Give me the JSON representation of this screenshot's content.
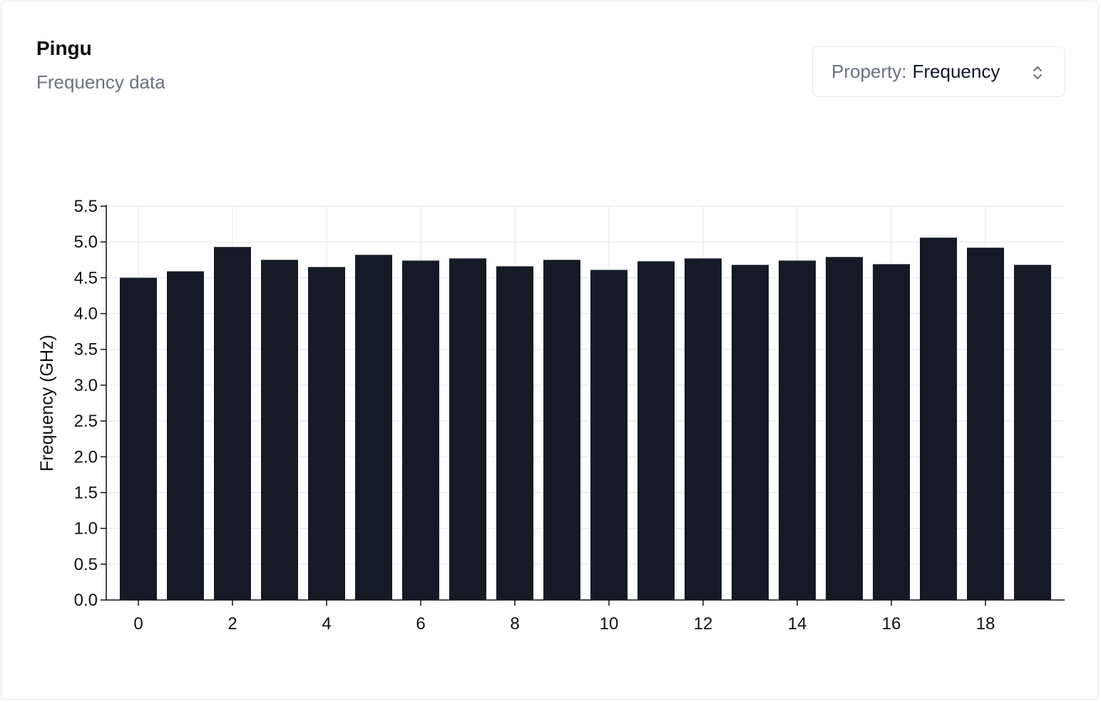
{
  "card": {
    "title": "Pingu",
    "subtitle": "Frequency data"
  },
  "property_select": {
    "prefix": "Property:",
    "value": "Frequency",
    "icon": "chevron-up-down-icon"
  },
  "colors": {
    "bar": "#151a27",
    "grid": "#e5e5e5",
    "axis": "#111111",
    "muted_text": "#6b7280"
  },
  "chart_data": {
    "type": "bar",
    "ylabel": "Frequency (GHz)",
    "xlabel": "",
    "categories": [
      0,
      1,
      2,
      3,
      4,
      5,
      6,
      7,
      8,
      9,
      10,
      11,
      12,
      13,
      14,
      15,
      16,
      17,
      18,
      19
    ],
    "x_tick_labels": [
      "0",
      "2",
      "4",
      "6",
      "8",
      "10",
      "12",
      "14",
      "16",
      "18"
    ],
    "values": [
      4.5,
      4.59,
      4.93,
      4.75,
      4.65,
      4.82,
      4.74,
      4.77,
      4.66,
      4.75,
      4.61,
      4.73,
      4.77,
      4.68,
      4.74,
      4.79,
      4.69,
      5.06,
      4.92,
      4.68
    ],
    "ylim": [
      0,
      5.5
    ],
    "y_ticks": [
      "0.0",
      "0.5",
      "1.0",
      "1.5",
      "2.0",
      "2.5",
      "3.0",
      "3.5",
      "4.0",
      "4.5",
      "5.0",
      "5.5"
    ],
    "grid": true,
    "legend": "none"
  }
}
